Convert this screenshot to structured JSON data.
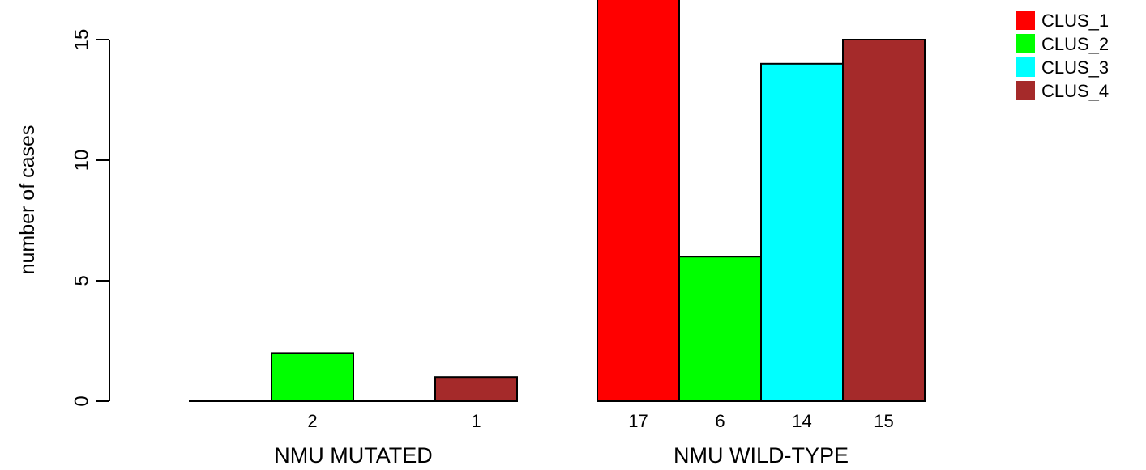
{
  "chart_data": {
    "type": "bar",
    "xlabel": "",
    "ylabel": "number of cases",
    "ylim": [
      0,
      17
    ],
    "yticks": [
      0,
      5,
      10,
      15
    ],
    "grid": false,
    "legend_position": "top-right",
    "groups": [
      {
        "label": "NMU MUTATED",
        "values": [
          0,
          2,
          0,
          1
        ],
        "bar_labels": [
          "",
          "2",
          "",
          "1"
        ]
      },
      {
        "label": "NMU WILD-TYPE",
        "values": [
          17,
          6,
          14,
          15
        ],
        "bar_labels": [
          "17",
          "6",
          "14",
          "15"
        ]
      }
    ],
    "series": [
      {
        "name": "CLUS_1",
        "color": "#ff0000"
      },
      {
        "name": "CLUS_2",
        "color": "#00ff00"
      },
      {
        "name": "CLUS_3",
        "color": "#00ffff"
      },
      {
        "name": "CLUS_4",
        "color": "#a52a2a"
      }
    ]
  }
}
